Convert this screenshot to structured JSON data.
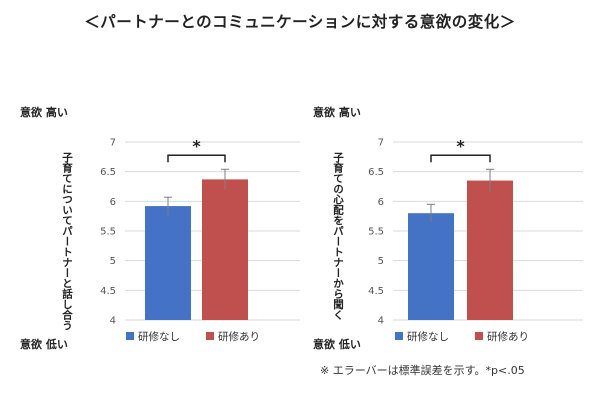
{
  "title": "＜パートナーとのコミュニケーションに対する意欲の変化＞",
  "footnote": "※ エラーバーは標準誤差を示す。*p<.05",
  "colors": {
    "series1": "#4472c4",
    "series2": "#c0504d",
    "grid": "#d9d9d9",
    "errorbar": "#7f7f7f"
  },
  "chart_data": [
    {
      "type": "bar",
      "axis_top_label": "意欲 高い",
      "axis_bottom_label": "意欲 低い",
      "ylabel": "子育てについてパートナーと話し合う",
      "ylim": [
        4,
        7
      ],
      "yticks": [
        "4",
        "4.5",
        "5",
        "5.5",
        "6",
        "6.5",
        "7"
      ],
      "grid": true,
      "legend_position": "bottom",
      "series": [
        {
          "name": "研修なし",
          "value": 5.92,
          "error": 0.15
        },
        {
          "name": "研修あり",
          "value": 6.37,
          "error": 0.17
        }
      ],
      "significance": "*"
    },
    {
      "type": "bar",
      "axis_top_label": "意欲 高い",
      "axis_bottom_label": "意欲 低い",
      "ylabel": "子育ての心配をパートナーから聞く",
      "ylim": [
        4,
        7
      ],
      "yticks": [
        "4",
        "4.5",
        "5",
        "5.5",
        "6",
        "6.5",
        "7"
      ],
      "grid": true,
      "legend_position": "bottom",
      "series": [
        {
          "name": "研修なし",
          "value": 5.8,
          "error": 0.15
        },
        {
          "name": "研修あり",
          "value": 6.35,
          "error": 0.19
        }
      ],
      "significance": "*"
    }
  ]
}
